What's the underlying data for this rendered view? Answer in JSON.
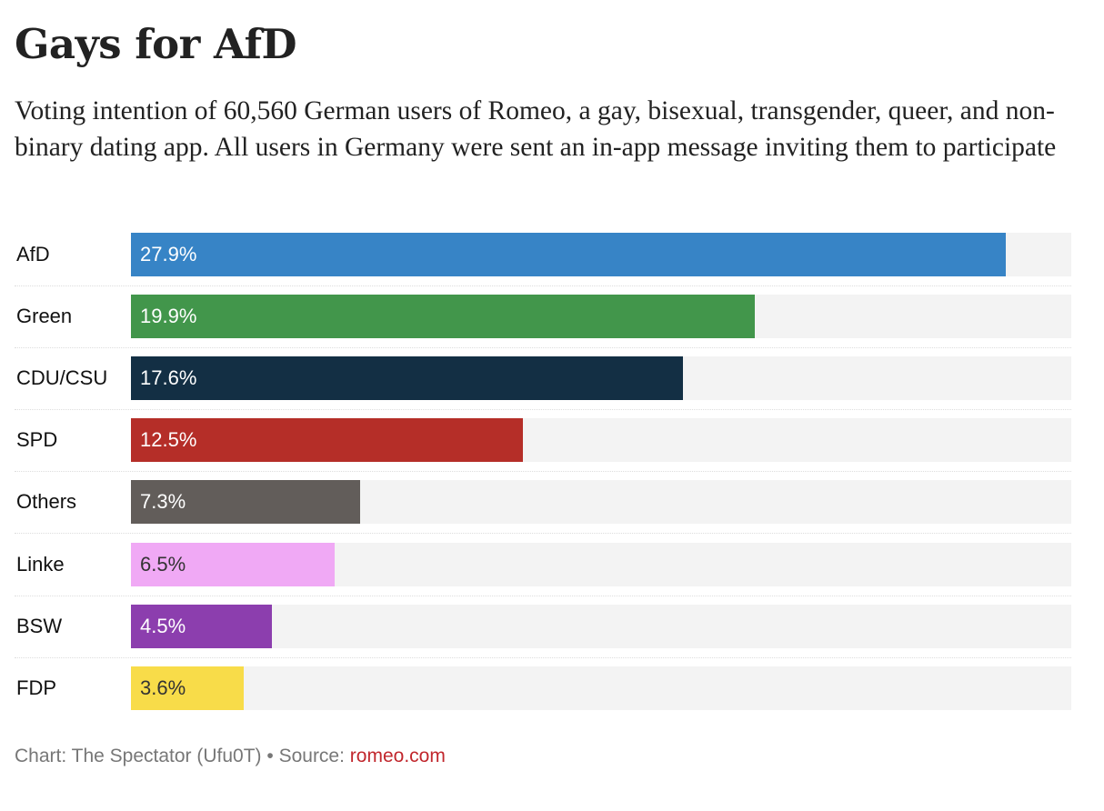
{
  "chart_data": {
    "type": "bar",
    "orientation": "horizontal",
    "title": "Gays for AfD",
    "subtitle": "Voting intention of 60,560 German users of Romeo, a gay, bisexual, transgender, queer, and non-binary dating app. All users in Germany were sent an in-app message inviting them to participate",
    "categories": [
      "AfD",
      "Green",
      "CDU/CSU",
      "SPD",
      "Others",
      "Linke",
      "BSW",
      "FDP"
    ],
    "values": [
      27.9,
      19.9,
      17.6,
      12.5,
      7.3,
      6.5,
      4.5,
      3.6
    ],
    "value_labels": [
      "27.9%",
      "19.9%",
      "17.6%",
      "12.5%",
      "7.3%",
      "6.5%",
      "4.5%",
      "3.6%"
    ],
    "colors": [
      "#3784c6",
      "#42964b",
      "#132f44",
      "#b52e28",
      "#625d5a",
      "#f0a9f5",
      "#8c3eae",
      "#f8dc49"
    ],
    "label_colors": [
      "#ffffff",
      "#ffffff",
      "#ffffff",
      "#ffffff",
      "#ffffff",
      "#333333",
      "#ffffff",
      "#333333"
    ],
    "xlim": [
      0,
      30
    ],
    "xlabel": "",
    "ylabel": "",
    "unit": "%",
    "grid": false,
    "legend": "none"
  },
  "footer": {
    "credit": "Chart: The Spectator (Ufu0T) • Source: ",
    "source_link": "romeo.com"
  }
}
